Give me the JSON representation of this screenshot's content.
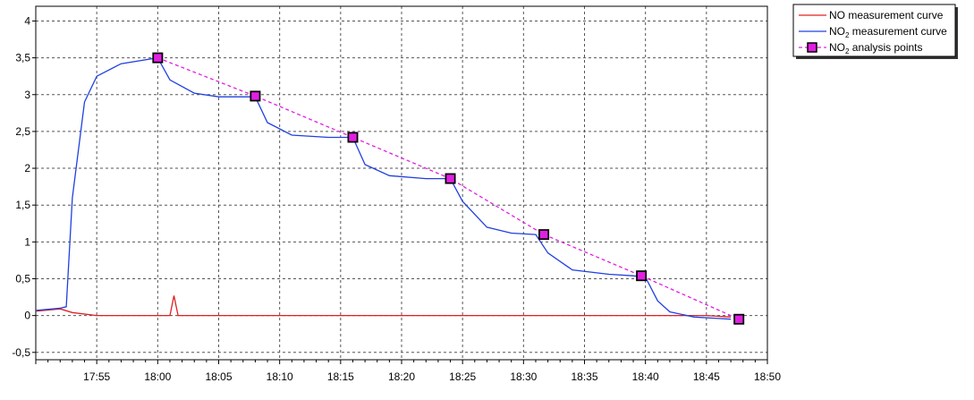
{
  "chart_data": {
    "type": "line",
    "title": "",
    "xlabel": "",
    "ylabel": "",
    "x_unit": "time (HH:MM)",
    "xlim": [
      "17:50",
      "18:50"
    ],
    "ylim": [
      -0.6,
      4.2
    ],
    "x_ticks": [
      "17:55",
      "18:00",
      "18:05",
      "18:10",
      "18:15",
      "18:20",
      "18:25",
      "18:30",
      "18:35",
      "18:40",
      "18:45",
      "18:50"
    ],
    "y_ticks": [
      "-0,5",
      "0",
      "0,5",
      "1",
      "1,5",
      "2",
      "2,5",
      "3",
      "3,5",
      "4"
    ],
    "grid": true,
    "grid_style": "dashed",
    "legend_position": "outside-top-right",
    "series": [
      {
        "name": "NO measurement curve",
        "color": "#e02020",
        "style": "solid",
        "points": [
          [
            "17:50",
            0.06
          ],
          [
            "17:52",
            0.09
          ],
          [
            "17:53",
            0.04
          ],
          [
            "17:55",
            0.0
          ],
          [
            "18:00",
            0.0
          ],
          [
            "18:01",
            0.0
          ],
          [
            "18:01:20",
            0.27
          ],
          [
            "18:01:40",
            0.0
          ],
          [
            "18:10",
            0.0
          ],
          [
            "18:20",
            0.0
          ],
          [
            "18:30",
            0.0
          ],
          [
            "18:40",
            0.0
          ],
          [
            "18:45",
            0.0
          ],
          [
            "18:47",
            -0.02
          ]
        ]
      },
      {
        "name": "NO2 measurement curve",
        "color": "#2040e0",
        "style": "solid",
        "points": [
          [
            "17:50",
            0.07
          ],
          [
            "17:52",
            0.1
          ],
          [
            "17:52:30",
            0.12
          ],
          [
            "17:53",
            1.6
          ],
          [
            "17:54",
            2.9
          ],
          [
            "17:55",
            3.25
          ],
          [
            "17:57",
            3.42
          ],
          [
            "18:00",
            3.5
          ],
          [
            "18:01",
            3.2
          ],
          [
            "18:03",
            3.02
          ],
          [
            "18:05",
            2.97
          ],
          [
            "18:08",
            2.97
          ],
          [
            "18:09",
            2.62
          ],
          [
            "18:11",
            2.45
          ],
          [
            "18:14",
            2.42
          ],
          [
            "18:16",
            2.42
          ],
          [
            "18:17",
            2.05
          ],
          [
            "18:19",
            1.9
          ],
          [
            "18:22",
            1.86
          ],
          [
            "18:24",
            1.86
          ],
          [
            "18:25",
            1.55
          ],
          [
            "18:27",
            1.2
          ],
          [
            "18:29",
            1.12
          ],
          [
            "18:31",
            1.1
          ],
          [
            "18:32",
            0.85
          ],
          [
            "18:34",
            0.62
          ],
          [
            "18:37",
            0.56
          ],
          [
            "18:39",
            0.54
          ],
          [
            "18:40",
            0.52
          ],
          [
            "18:41",
            0.2
          ],
          [
            "18:42",
            0.05
          ],
          [
            "18:44",
            -0.02
          ],
          [
            "18:46",
            -0.04
          ],
          [
            "18:47",
            -0.05
          ]
        ]
      },
      {
        "name": "NO2 analysis points",
        "color": "#e020e0",
        "marker_color": "#e020e0",
        "marker": "square",
        "style": "dashed",
        "points": [
          [
            "18:00",
            3.5
          ],
          [
            "18:08",
            2.98
          ],
          [
            "18:16",
            2.42
          ],
          [
            "18:24",
            1.86
          ],
          [
            "18:31:40",
            1.1
          ],
          [
            "18:39:40",
            0.54
          ],
          [
            "18:47:40",
            -0.05
          ]
        ]
      }
    ]
  },
  "legend": {
    "items": [
      {
        "prefix": "NO",
        "sub": "",
        "suffix": " measurement curve"
      },
      {
        "prefix": "NO",
        "sub": "2",
        "suffix": " measurement curve"
      },
      {
        "prefix": "NO",
        "sub": "2",
        "suffix": " analysis points"
      }
    ]
  }
}
